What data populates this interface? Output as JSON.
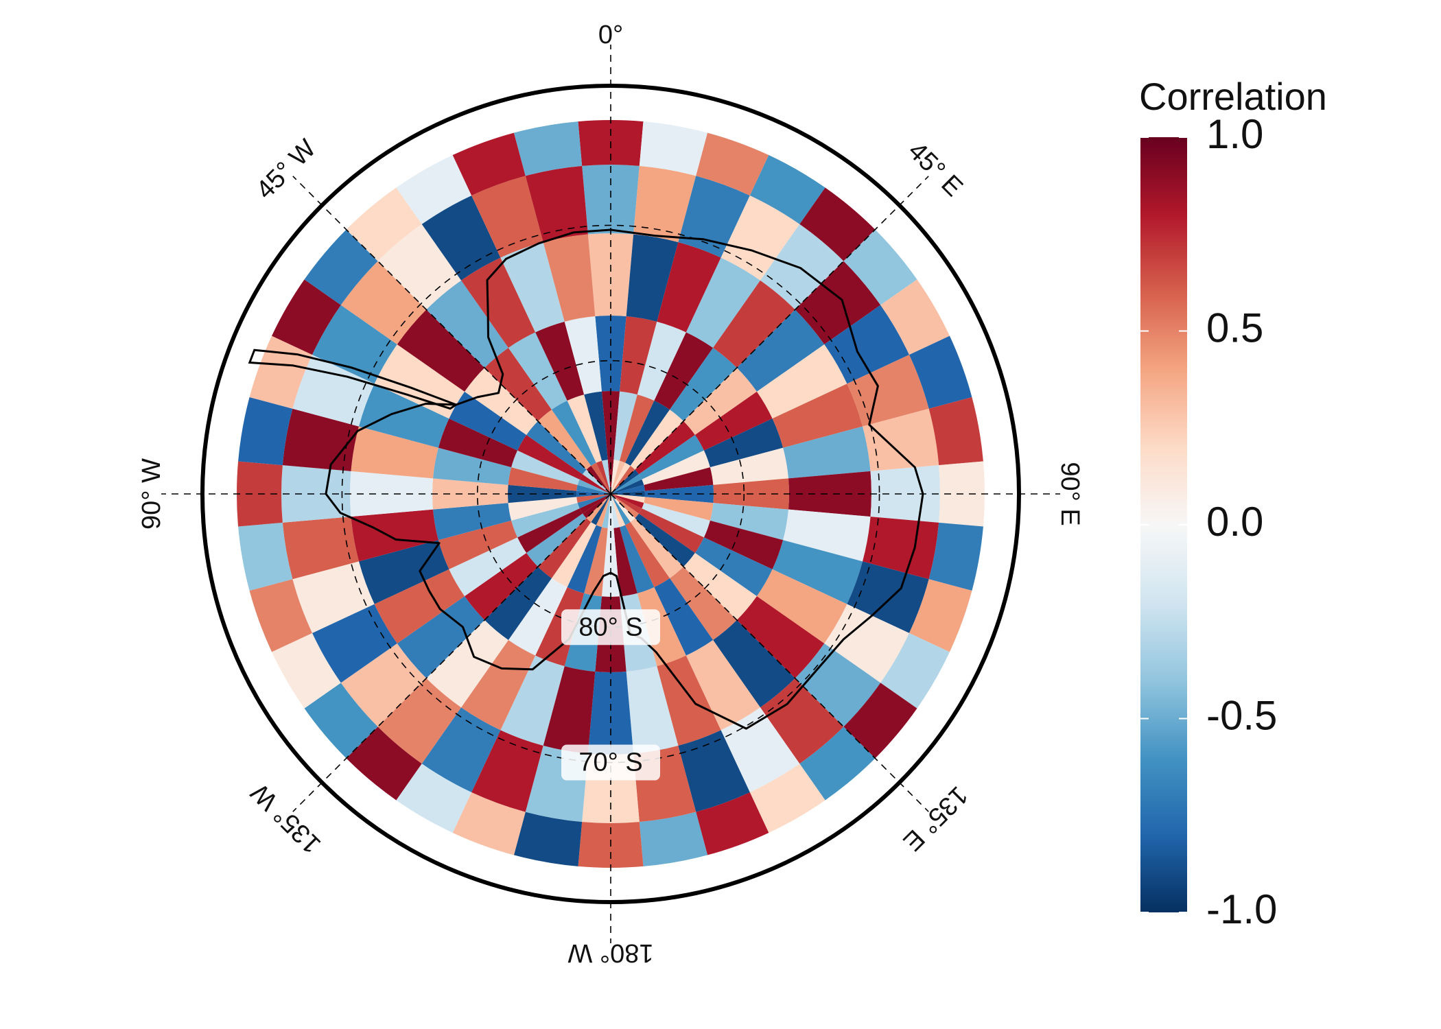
{
  "map": {
    "projection": "south-polar-stereographic",
    "outer_latitude": -60,
    "longitude_labels": [
      {
        "lon": 0,
        "text": "0°"
      },
      {
        "lon": 45,
        "text": "45° E"
      },
      {
        "lon": 90,
        "text": "90° E"
      },
      {
        "lon": 135,
        "text": "135° E"
      },
      {
        "lon": 180,
        "text": "180° W"
      },
      {
        "lon": -135,
        "text": "135° W"
      },
      {
        "lon": -90,
        "text": "90° W"
      },
      {
        "lon": -45,
        "text": "45° W"
      }
    ],
    "latitude_labels": [
      {
        "lat": -80,
        "text": "80° S"
      },
      {
        "lat": -70,
        "text": "70° S"
      }
    ],
    "gridline_latitudes": [
      -80,
      -70
    ]
  },
  "colorbar": {
    "title": "Correlation",
    "min": -1.0,
    "max": 1.0,
    "ticks": [
      "1.0",
      "0.5",
      "0.0",
      "-0.5",
      "-1.0"
    ],
    "tick_values": [
      1.0,
      0.5,
      0.0,
      -0.5,
      -1.0
    ],
    "colormap": "RdBu_r",
    "colors": [
      "#053061",
      "#2166ac",
      "#4393c3",
      "#92c5de",
      "#d1e5f0",
      "#f7f7f7",
      "#fddbc7",
      "#f4a582",
      "#d6604d",
      "#b2182b",
      "#67001f"
    ]
  },
  "chart_data": {
    "type": "heatmap",
    "title": "",
    "grid": "polar",
    "longitude_bins": 36,
    "latitude_rings": [
      "-88 to -84",
      "-84 to -76",
      "-76 to -70",
      "-70 to -64",
      "-64 to -61"
    ],
    "seed_description": "correlation values between -1 and 1 per lon/lat cell",
    "values": [
      [
        0.9,
        -0.3,
        0.6,
        -0.9,
        0.2,
        0.8,
        -0.6,
        0.1,
        0.9,
        -0.8,
        0.4,
        -0.2,
        0.7,
        -0.9,
        0.3,
        0.6,
        -0.7,
        0.9,
        -0.1,
        0.5,
        -0.8,
        0.2,
        0.7,
        -0.5,
        0.9,
        -0.4,
        0.1,
        -0.9,
        0.6,
        -0.3,
        0.8,
        -0.7,
        0.4,
        -0.6,
        0.2,
        -0.9
      ],
      [
        -0.8,
        0.7,
        -0.2,
        0.9,
        -0.6,
        0.3,
        0.8,
        -0.9,
        0.1,
        0.6,
        -0.4,
        0.9,
        -0.7,
        0.2,
        0.5,
        -0.8,
        0.4,
        -0.3,
        0.9,
        -0.6,
        0.7,
        -0.1,
        -0.9,
        0.8,
        -0.2,
        0.6,
        -0.7,
        0.3,
        -0.5,
        0.9,
        -0.8,
        0.2,
        0.7,
        -0.4,
        0.9,
        -0.1
      ],
      [
        0.3,
        -0.9,
        0.8,
        -0.4,
        0.7,
        -0.7,
        0.2,
        0.6,
        -0.5,
        0.9,
        -0.1,
        -0.6,
        0.4,
        0.8,
        -0.9,
        0.3,
        0.6,
        -0.2,
        -0.8,
        0.9,
        -0.3,
        0.5,
        0.1,
        -0.7,
        0.6,
        -0.9,
        0.8,
        -0.1,
        0.4,
        -0.6,
        0.2,
        0.9,
        -0.5,
        0.7,
        -0.3,
        0.5
      ],
      [
        -0.5,
        0.4,
        -0.7,
        0.2,
        -0.3,
        0.9,
        -0.8,
        0.5,
        0.3,
        -0.2,
        0.8,
        -0.9,
        0.1,
        -0.5,
        0.7,
        -0.1,
        -0.9,
        0.6,
        0.2,
        -0.4,
        0.8,
        -0.7,
        0.5,
        0.3,
        -0.8,
        0.1,
        0.6,
        -0.3,
        0.9,
        -0.2,
        -0.6,
        0.4,
        0.1,
        -0.9,
        0.6,
        0.8
      ],
      [
        0.8,
        -0.1,
        0.5,
        -0.6,
        0.9,
        -0.4,
        0.3,
        -0.8,
        0.7,
        0.1,
        -0.7,
        0.4,
        -0.3,
        0.9,
        -0.6,
        0.2,
        0.8,
        -0.5,
        0.6,
        -0.9,
        0.3,
        -0.2,
        0.9,
        -0.6,
        0.1,
        0.5,
        -0.4,
        0.7,
        -0.8,
        0.3,
        0.9,
        -0.7,
        0.2,
        -0.1,
        0.8,
        -0.5
      ]
    ]
  }
}
